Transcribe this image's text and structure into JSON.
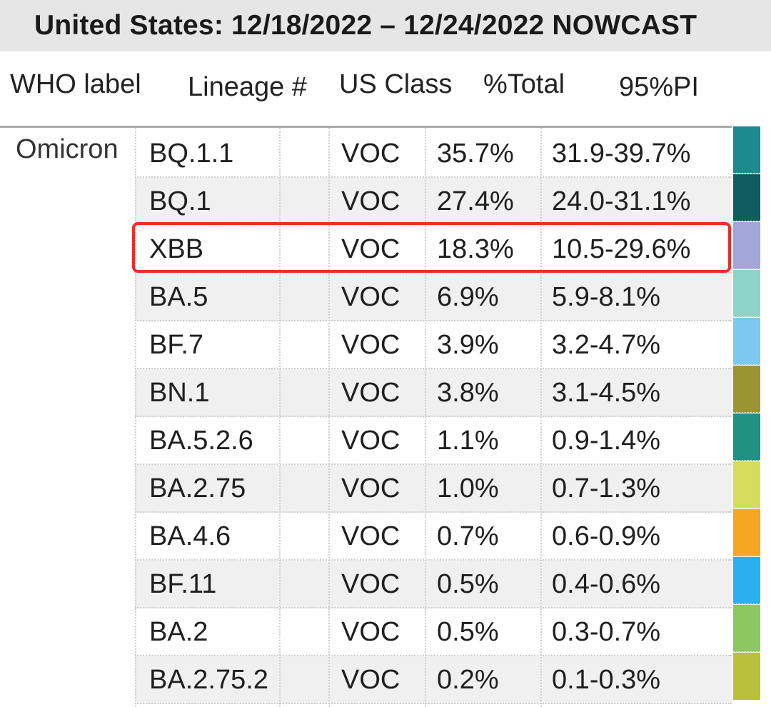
{
  "title": "United States: 12/18/2022 – 12/24/2022 NOWCAST",
  "headers": {
    "who_label": "WHO label",
    "lineage": "Lineage #",
    "us_class": "US Class",
    "total": "%Total",
    "pi": "95%PI"
  },
  "who_label": "Omicron",
  "highlighted_lineage": "XBB",
  "rows": [
    {
      "lineage": "BQ.1.1",
      "us_class": "VOC",
      "total": "35.7%",
      "pi": "31.9-39.7%",
      "color": "#1b8b8f"
    },
    {
      "lineage": "BQ.1",
      "us_class": "VOC",
      "total": "27.4%",
      "pi": "24.0-31.1%",
      "color": "#0f5d5e"
    },
    {
      "lineage": "XBB",
      "us_class": "VOC",
      "total": "18.3%",
      "pi": "10.5-29.6%",
      "color": "#a3a6d9"
    },
    {
      "lineage": "BA.5",
      "us_class": "VOC",
      "total": "6.9%",
      "pi": "5.9-8.1%",
      "color": "#8ed3c7"
    },
    {
      "lineage": "BF.7",
      "us_class": "VOC",
      "total": "3.9%",
      "pi": "3.2-4.7%",
      "color": "#7cc8ee"
    },
    {
      "lineage": "BN.1",
      "us_class": "VOC",
      "total": "3.8%",
      "pi": "3.1-4.5%",
      "color": "#9a9432"
    },
    {
      "lineage": "BA.5.2.6",
      "us_class": "VOC",
      "total": "1.1%",
      "pi": "0.9-1.4%",
      "color": "#1f9281"
    },
    {
      "lineage": "BA.2.75",
      "us_class": "VOC",
      "total": "1.0%",
      "pi": "0.7-1.3%",
      "color": "#d6dd5c"
    },
    {
      "lineage": "BA.4.6",
      "us_class": "VOC",
      "total": "0.7%",
      "pi": "0.6-0.9%",
      "color": "#f5a623"
    },
    {
      "lineage": "BF.11",
      "us_class": "VOC",
      "total": "0.5%",
      "pi": "0.4-0.6%",
      "color": "#29b0ef"
    },
    {
      "lineage": "BA.2",
      "us_class": "VOC",
      "total": "0.5%",
      "pi": "0.3-0.7%",
      "color": "#8cc760"
    },
    {
      "lineage": "BA.2.75.2",
      "us_class": "VOC",
      "total": "0.2%",
      "pi": "0.1-0.3%",
      "color": "#b9c03b"
    }
  ]
}
